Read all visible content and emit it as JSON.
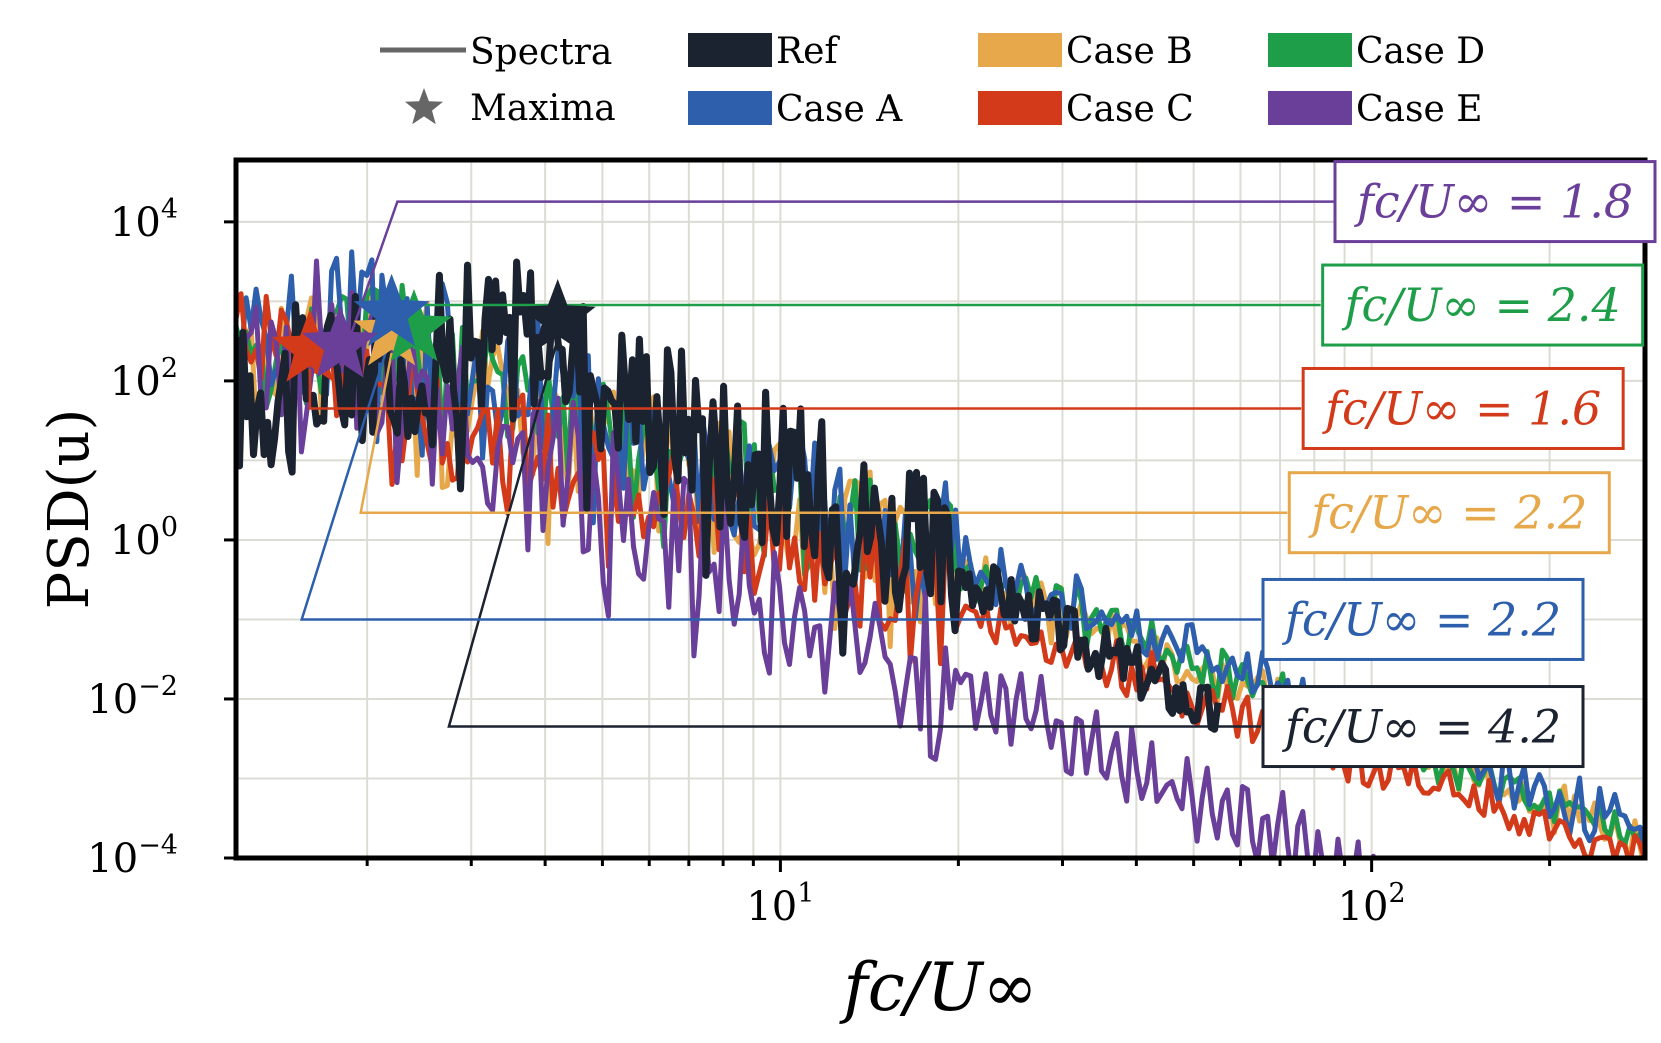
{
  "chart_data": {
    "type": "line",
    "xlabel": "fc/U∞",
    "ylabel": "PSD(u)",
    "xscale": "log",
    "yscale": "log",
    "xlim": [
      1.2,
      290
    ],
    "ylim": [
      0.0001,
      60000
    ],
    "grid": true,
    "x_ticks": [
      {
        "value": 10,
        "base": "10",
        "exp": "1"
      },
      {
        "value": 100,
        "base": "10",
        "exp": "2"
      }
    ],
    "y_ticks": [
      {
        "value": 10000,
        "base": "10",
        "exp": "4"
      },
      {
        "value": 100,
        "base": "10",
        "exp": "2"
      },
      {
        "value": 1,
        "base": "10",
        "exp": "0"
      },
      {
        "value": 0.01,
        "base": "10",
        "exp": "−2"
      },
      {
        "value": 0.0001,
        "base": "10",
        "exp": "−4"
      }
    ],
    "legend": {
      "placement": "top",
      "style_entries": [
        {
          "label": "Spectra",
          "kind": "line",
          "color": "#666666"
        },
        {
          "label": "Maxima",
          "kind": "star",
          "color": "#666666"
        }
      ]
    },
    "series": [
      {
        "name": "Ref",
        "color": "#1b2230",
        "peak": 4.2,
        "peak_value": 600,
        "lowf": 60,
        "drop": 0.35,
        "decay": 1.9,
        "noise": 1.0,
        "cutoff": 55,
        "osc": 0.0,
        "width": 7,
        "label_text": "fc/U∞ = 4.2",
        "label_y": 0.0045,
        "label_x": 150,
        "guide_x": 2.75,
        "guide_end": 65
      },
      {
        "name": "Case A",
        "color": "#2d5fad",
        "peak": 2.2,
        "peak_value": 700,
        "lowf": 300,
        "drop": 0.25,
        "decay": 1.35,
        "noise": 0.8,
        "cutoff": 999,
        "osc": 0.15,
        "width": 5,
        "label_text": "fc/U∞ = 2.2",
        "label_y": 0.1,
        "label_x": 150,
        "guide_x": 1.55,
        "guide_end": 65
      },
      {
        "name": "Case B",
        "color": "#e6a84a",
        "peak": 2.2,
        "peak_value": 400,
        "lowf": 100,
        "drop": 0.3,
        "decay": 1.3,
        "noise": 0.8,
        "cutoff": 999,
        "osc": 0.15,
        "width": 5,
        "label_text": "fc/U∞ = 2.2",
        "label_y": 2.2,
        "label_x": 150,
        "guide_x": 1.95,
        "guide_end": 72
      },
      {
        "name": "Case C",
        "color": "#d33a1a",
        "peak": 1.6,
        "peak_value": 250,
        "lowf": 500,
        "drop": 0.25,
        "decay": 1.25,
        "noise": 0.7,
        "cutoff": 999,
        "osc": 0.12,
        "width": 5,
        "label_text": "fc/U∞ = 1.6",
        "label_y": 45,
        "label_x": 150,
        "guide_x": 1.6,
        "guide_end": 76
      },
      {
        "name": "Case D",
        "color": "#1f9e4a",
        "peak": 2.4,
        "peak_value": 450,
        "lowf": 200,
        "drop": 0.25,
        "decay": 1.35,
        "noise": 0.7,
        "cutoff": 999,
        "osc": 0.15,
        "width": 5,
        "label_text": "fc/U∞ = 2.4",
        "label_y": 900,
        "label_x": 150,
        "guide_x": 2.45,
        "guide_end": 82
      },
      {
        "name": "Case E",
        "color": "#6a3f9a",
        "peak": 1.8,
        "peak_value": 280,
        "lowf": 200,
        "drop": 0.3,
        "decay": 1.7,
        "noise": 0.8,
        "cutoff": 999,
        "osc": 0.4,
        "width": 5,
        "label_text": "fc/U∞ = 1.8",
        "label_y": 18000,
        "label_x": 150,
        "guide_x": 2.25,
        "guide_end": 88
      }
    ]
  }
}
